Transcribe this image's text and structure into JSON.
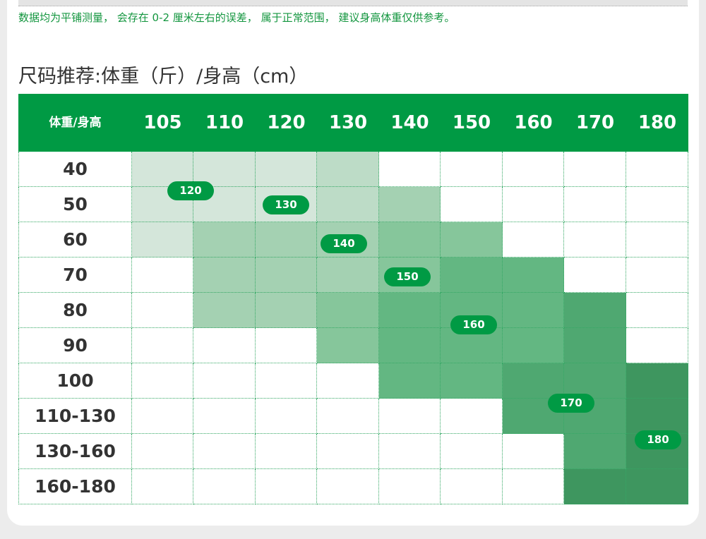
{
  "note": "数据均为平铺测量， 会存在 0-2 厘米左右的误差， 属于正常范围， 建议身高体重仅供参考。",
  "title": "尺码推荐:体重（斤）/身高（cm）",
  "table": {
    "corner": "体重/身高",
    "columns": [
      "105",
      "110",
      "120",
      "130",
      "140",
      "150",
      "160",
      "170",
      "180"
    ],
    "rows": [
      "40",
      "50",
      "60",
      "70",
      "80",
      "90",
      "100",
      "110-130",
      "130-160",
      "160-180"
    ]
  },
  "badges": [
    "120",
    "130",
    "140",
    "150",
    "160",
    "170",
    "180"
  ]
}
